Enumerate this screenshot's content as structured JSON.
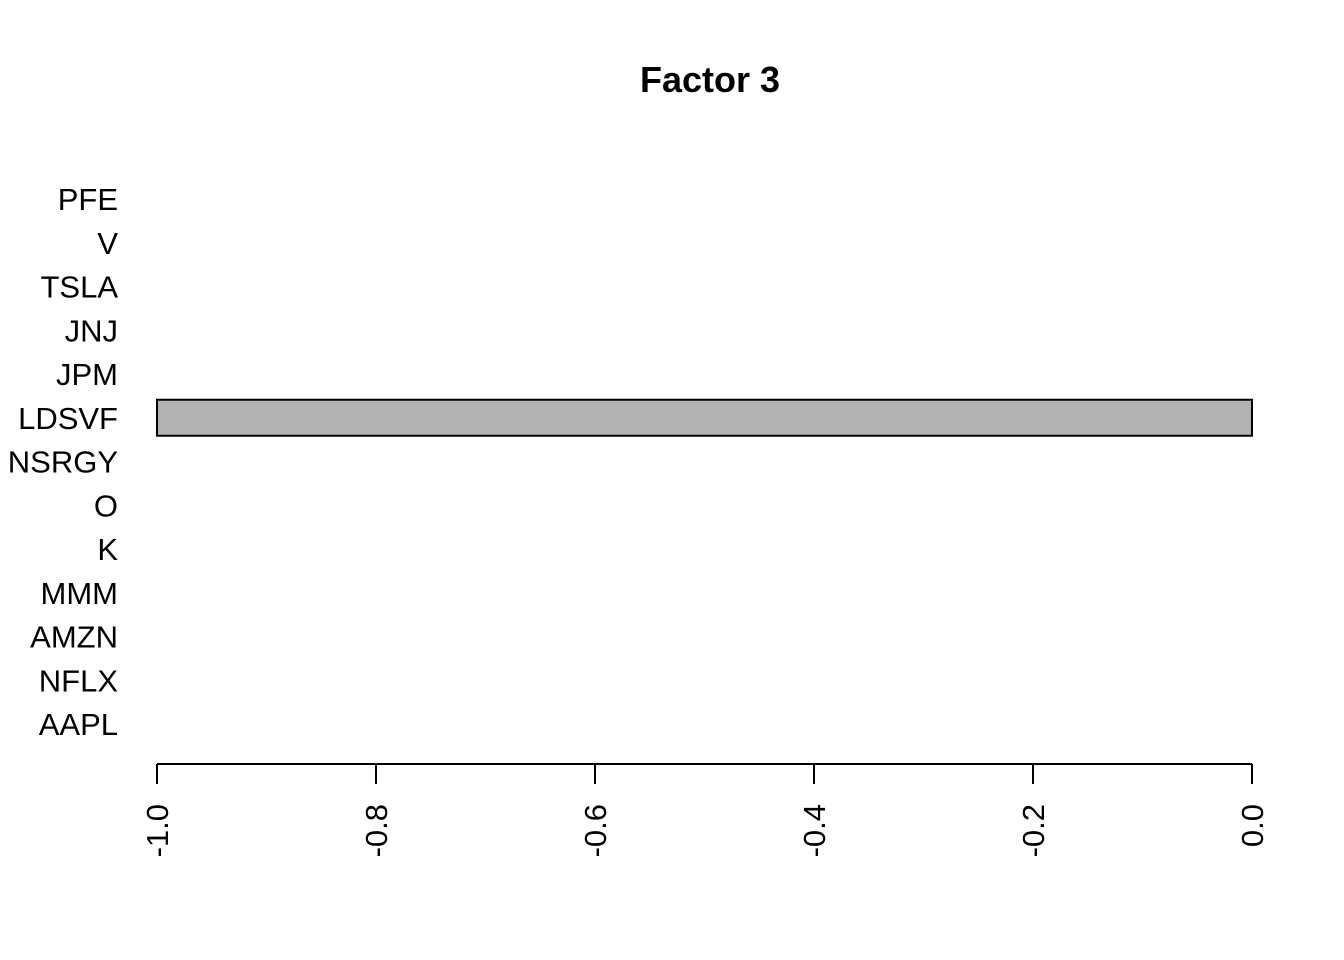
{
  "chart_data": {
    "type": "bar",
    "orientation": "horizontal",
    "title": "Factor 3",
    "xlabel": "",
    "ylabel": "",
    "categories": [
      "AAPL",
      "NFLX",
      "AMZN",
      "MMM",
      "K",
      "O",
      "NSRGY",
      "LDSVF",
      "JPM",
      "JNJ",
      "TSLA",
      "V",
      "PFE"
    ],
    "values": [
      0,
      0,
      0,
      0,
      0,
      0,
      0,
      -1.0,
      0,
      0,
      0,
      0,
      0
    ],
    "xlim": [
      -1.0,
      0.0
    ],
    "xticks": [
      "-1.0",
      "-0.8",
      "-0.6",
      "-0.4",
      "-0.2",
      "0.0"
    ],
    "xtick_values": [
      -1.0,
      -0.8,
      -0.6,
      -0.4,
      -0.2,
      0.0
    ],
    "grid": false,
    "bar_color": "#b2b2b2",
    "bar_edge_color": "#000000"
  }
}
